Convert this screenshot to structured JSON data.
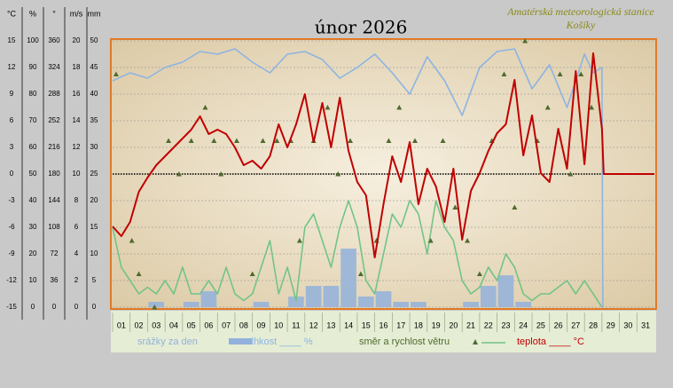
{
  "chart_data": {
    "type": "line",
    "title": "únor 2026",
    "subtitle": "Amatérská meteorologická stanice Košíky",
    "categories": [
      "01",
      "02",
      "03",
      "04",
      "05",
      "06",
      "07",
      "08",
      "09",
      "10",
      "11",
      "12",
      "13",
      "14",
      "15",
      "16",
      "17",
      "18",
      "19",
      "20",
      "21",
      "22",
      "23",
      "24",
      "25",
      "26",
      "27",
      "28",
      "29",
      "30",
      "31"
    ],
    "xlim": [
      1,
      32
    ],
    "ylabel": "°C",
    "ylim": [
      -15,
      15
    ],
    "yticks": [
      -15,
      -12,
      -9,
      -6,
      -3,
      0,
      3,
      6,
      9,
      12,
      15
    ],
    "y2label": "%",
    "y2lim": [
      0,
      100
    ],
    "y2ticks": [
      0,
      10,
      20,
      30,
      40,
      50,
      60,
      70,
      80,
      90,
      100
    ],
    "y3label": "°",
    "y3lim": [
      0,
      360
    ],
    "y3ticks": [
      0,
      36,
      72,
      108,
      144,
      180,
      216,
      252,
      288,
      324,
      360
    ],
    "y4label": "m/s",
    "y4lim": [
      0,
      20
    ],
    "y4ticks": [
      0,
      2,
      4,
      6,
      8,
      10,
      12,
      14,
      16,
      18,
      20
    ],
    "y5label": "mm",
    "y5lim": [
      0,
      50
    ],
    "y5ticks": [
      0,
      5,
      10,
      15,
      20,
      25,
      30,
      35,
      40,
      45,
      50
    ],
    "zero_line": 0,
    "grid": true,
    "series": [
      {
        "name": "srážky za den",
        "type": "bar",
        "axis": "y5",
        "color": "#92b1dc",
        "values": [
          0,
          0,
          1,
          0,
          1,
          3,
          0,
          0,
          1,
          0,
          2,
          4,
          4,
          11,
          2,
          3,
          1,
          1,
          0,
          0,
          1,
          4,
          6,
          1,
          0,
          0,
          0,
          0,
          null,
          null,
          null
        ]
      },
      {
        "type": "line",
        "axis": "y4",
        "color": "#72c487",
        "x": [
          1,
          1.5,
          2,
          2.5,
          3,
          3.5,
          4,
          4.5,
          5,
          5.5,
          6,
          6.5,
          7,
          7.5,
          8,
          8.5,
          9,
          9.5,
          10,
          10.5,
          11,
          11.5,
          12,
          12.5,
          13,
          13.5,
          14,
          14.5,
          15,
          15.5,
          16,
          16.5,
          17,
          17.5,
          18,
          18.5,
          19,
          19.5,
          20,
          20.5,
          21,
          21.5,
          22,
          22.5,
          23,
          23.5,
          24,
          24.5,
          25,
          25.5,
          26,
          26.5,
          27,
          27.5,
          28,
          28.5,
          29
        ],
        "values": [
          6,
          3,
          2,
          1,
          1.5,
          1,
          2,
          1,
          3,
          1,
          1,
          2,
          1,
          3,
          1,
          0.5,
          1,
          3,
          5,
          1,
          3,
          0.5,
          6,
          7,
          5,
          3,
          6,
          8,
          6,
          2,
          1,
          4,
          7,
          6,
          8,
          7,
          4,
          8,
          6,
          5,
          2,
          1,
          1.5,
          3,
          2,
          4,
          3,
          1,
          0.5,
          1,
          1,
          1.5,
          2,
          1,
          2,
          1,
          0
        ]
      },
      {
        "name": "vlhkost ____ %",
        "type": "line",
        "axis": "y2",
        "color": "#8db4e2",
        "x": [
          1,
          2,
          3,
          4,
          5,
          6,
          7,
          8,
          9,
          10,
          11,
          12,
          13,
          14,
          15,
          16,
          17,
          18,
          19,
          20,
          21,
          22,
          23,
          24,
          25,
          26,
          27,
          28,
          28.5,
          29,
          29.05
        ],
        "values": [
          85,
          88,
          86,
          90,
          92,
          96,
          95,
          97,
          92,
          88,
          95,
          96,
          93,
          86,
          90,
          95,
          88,
          80,
          94,
          85,
          72,
          90,
          96,
          97,
          82,
          91,
          75,
          95,
          88,
          90,
          0
        ]
      },
      {
        "name": "směr a rychlost větru",
        "type": "scatter",
        "axis": "y3",
        "color": "#4f6b2f",
        "x": [
          1.2,
          2.1,
          2.5,
          3.4,
          4.2,
          4.8,
          5.5,
          6.3,
          6.8,
          7.2,
          8.1,
          9.0,
          9.6,
          10.4,
          11.2,
          11.7,
          12.5,
          13.3,
          13.9,
          14.6,
          15.2,
          16.1,
          16.8,
          17.4,
          18.3,
          19.2,
          19.9,
          20.6,
          21.3,
          22.0,
          22.7,
          23.4,
          24.0,
          24.6,
          25.3,
          25.9,
          26.6,
          27.2,
          27.8,
          28.4
        ],
        "values": [
          315,
          90,
          45,
          0,
          225,
          180,
          225,
          270,
          225,
          180,
          225,
          45,
          225,
          225,
          225,
          90,
          225,
          270,
          180,
          225,
          45,
          90,
          225,
          270,
          225,
          90,
          225,
          135,
          90,
          45,
          225,
          315,
          135,
          360,
          225,
          270,
          315,
          180,
          315,
          270
        ]
      },
      {
        "name": "teplota ____ °C",
        "type": "line",
        "axis": "y",
        "color": "#c00000",
        "x": [
          1,
          1.5,
          2,
          2.5,
          3,
          3.5,
          4,
          4.5,
          5,
          5.5,
          6,
          6.5,
          7,
          7.5,
          8,
          8.5,
          9,
          9.5,
          10,
          10.5,
          11,
          11.5,
          12,
          12.5,
          13,
          13.5,
          14,
          14.5,
          15,
          15.5,
          16,
          16.5,
          17,
          17.5,
          18,
          18.5,
          19,
          19.5,
          20,
          20.5,
          21,
          21.5,
          22,
          22.5,
          23,
          23.5,
          24,
          24.5,
          25,
          25.5,
          26,
          26.5,
          27,
          27.5,
          28,
          28.5,
          29,
          29.1,
          32
        ],
        "values": [
          -5.9,
          -7,
          -5.4,
          -2,
          -0.4,
          1,
          2,
          3,
          4,
          5,
          6.5,
          4.5,
          5,
          4.5,
          3,
          1,
          1.5,
          0.6,
          2,
          5.6,
          3,
          5.6,
          9,
          3.6,
          8,
          3,
          8.6,
          2.6,
          -0.9,
          -2.4,
          -9.4,
          -3.4,
          2,
          -0.9,
          3.6,
          -3.4,
          0.6,
          -1.4,
          -5.4,
          0.6,
          -7.4,
          -1.9,
          0.1,
          2.6,
          4.6,
          5.6,
          10.6,
          2.1,
          6.6,
          0.1,
          -0.9,
          5.1,
          0.6,
          11.6,
          1.1,
          13.6,
          5.1,
          0,
          0
        ]
      }
    ]
  }
}
